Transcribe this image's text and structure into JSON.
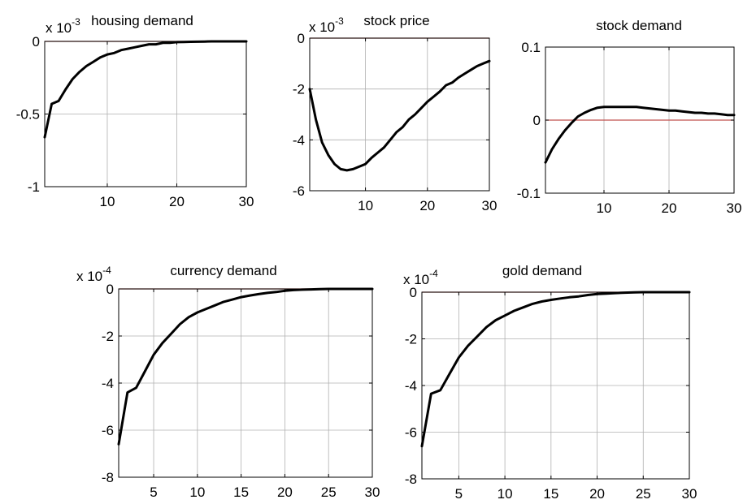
{
  "chart_data": [
    {
      "type": "line",
      "title": "housing demand",
      "exponent": {
        "base": "x 10",
        "power": "-3"
      },
      "xlim": [
        1,
        30
      ],
      "ylim": [
        -1,
        0
      ],
      "xticks": [
        10,
        20,
        30
      ],
      "xtick_labels": [
        "10",
        "20",
        "30"
      ],
      "yticks": [
        0,
        -0.5,
        -1
      ],
      "ytick_labels": [
        "0",
        "-0.5",
        "-1"
      ],
      "grid": true,
      "zero_line": true,
      "x": [
        1,
        2,
        3,
        4,
        5,
        6,
        7,
        8,
        9,
        10,
        11,
        12,
        13,
        14,
        15,
        16,
        17,
        18,
        19,
        20,
        21,
        22,
        23,
        24,
        25,
        26,
        27,
        28,
        29,
        30
      ],
      "series": [
        {
          "values": [
            -0.66,
            -0.43,
            -0.41,
            -0.33,
            -0.26,
            -0.21,
            -0.17,
            -0.14,
            -0.11,
            -0.09,
            -0.08,
            -0.06,
            -0.05,
            -0.04,
            -0.03,
            -0.02,
            -0.02,
            -0.01,
            -0.01,
            -0.005,
            -0.004,
            -0.003,
            -0.002,
            -0.001,
            0,
            0,
            0,
            0,
            0,
            0
          ]
        }
      ]
    },
    {
      "type": "line",
      "title": "stock price",
      "exponent": {
        "base": "x 10",
        "power": "-3"
      },
      "xlim": [
        1,
        30
      ],
      "ylim": [
        -6,
        0
      ],
      "xticks": [
        10,
        20,
        30
      ],
      "xtick_labels": [
        "10",
        "20",
        "30"
      ],
      "yticks": [
        0,
        -2,
        -4,
        -6
      ],
      "ytick_labels": [
        "0",
        "-2",
        "-4",
        "-6"
      ],
      "grid": true,
      "zero_line": true,
      "x": [
        1,
        2,
        3,
        4,
        5,
        6,
        7,
        8,
        9,
        10,
        11,
        12,
        13,
        14,
        15,
        16,
        17,
        18,
        19,
        20,
        21,
        22,
        23,
        24,
        25,
        26,
        27,
        28,
        29,
        30
      ],
      "series": [
        {
          "values": [
            -2.0,
            -3.2,
            -4.1,
            -4.6,
            -4.95,
            -5.15,
            -5.2,
            -5.15,
            -5.05,
            -4.95,
            -4.7,
            -4.5,
            -4.3,
            -4.0,
            -3.7,
            -3.5,
            -3.2,
            -3.0,
            -2.75,
            -2.5,
            -2.3,
            -2.1,
            -1.85,
            -1.75,
            -1.55,
            -1.4,
            -1.25,
            -1.1,
            -1.0,
            -0.9
          ]
        }
      ]
    },
    {
      "type": "line",
      "title": "stock demand",
      "exponent": null,
      "xlim": [
        1,
        30
      ],
      "ylim": [
        -0.1,
        0.1
      ],
      "xticks": [
        10,
        20,
        30
      ],
      "xtick_labels": [
        "10",
        "20",
        "30"
      ],
      "yticks": [
        0.1,
        0,
        -0.1
      ],
      "ytick_labels": [
        "0.1",
        "0",
        "-0.1"
      ],
      "grid": true,
      "zero_line": true,
      "x": [
        1,
        2,
        3,
        4,
        5,
        6,
        7,
        8,
        9,
        10,
        11,
        12,
        13,
        14,
        15,
        16,
        17,
        18,
        19,
        20,
        21,
        22,
        23,
        24,
        25,
        26,
        27,
        28,
        29,
        30
      ],
      "series": [
        {
          "values": [
            -0.058,
            -0.04,
            -0.026,
            -0.014,
            -0.004,
            0.005,
            0.01,
            0.014,
            0.017,
            0.018,
            0.018,
            0.018,
            0.018,
            0.018,
            0.018,
            0.017,
            0.016,
            0.015,
            0.014,
            0.013,
            0.013,
            0.012,
            0.011,
            0.01,
            0.01,
            0.009,
            0.009,
            0.008,
            0.007,
            0.007
          ]
        }
      ]
    },
    {
      "type": "line",
      "title": "currency demand",
      "exponent": {
        "base": "x 10",
        "power": "-4"
      },
      "xlim": [
        1,
        30
      ],
      "ylim": [
        -8,
        0
      ],
      "xticks": [
        5,
        10,
        15,
        20,
        25,
        30
      ],
      "xtick_labels": [
        "5",
        "10",
        "15",
        "20",
        "25",
        "30"
      ],
      "yticks": [
        0,
        -2,
        -4,
        -6,
        -8
      ],
      "ytick_labels": [
        "0",
        "-2",
        "-4",
        "-6",
        "-8"
      ],
      "grid": true,
      "zero_line": true,
      "x": [
        1,
        2,
        3,
        4,
        5,
        6,
        7,
        8,
        9,
        10,
        11,
        12,
        13,
        14,
        15,
        16,
        17,
        18,
        19,
        20,
        21,
        22,
        23,
        24,
        25,
        26,
        27,
        28,
        29,
        30
      ],
      "series": [
        {
          "values": [
            -6.6,
            -4.4,
            -4.2,
            -3.5,
            -2.8,
            -2.3,
            -1.9,
            -1.5,
            -1.2,
            -1.0,
            -0.85,
            -0.7,
            -0.55,
            -0.45,
            -0.35,
            -0.28,
            -0.22,
            -0.17,
            -0.13,
            -0.08,
            -0.05,
            -0.03,
            -0.02,
            -0.01,
            0,
            0,
            0,
            0,
            0,
            0
          ]
        }
      ]
    },
    {
      "type": "line",
      "title": "gold demand",
      "exponent": {
        "base": "x 10",
        "power": "-4"
      },
      "xlim": [
        1,
        30
      ],
      "ylim": [
        -8,
        0
      ],
      "xticks": [
        5,
        10,
        15,
        20,
        25,
        30
      ],
      "xtick_labels": [
        "5",
        "10",
        "15",
        "20",
        "25",
        "30"
      ],
      "yticks": [
        0,
        -2,
        -4,
        -6,
        -8
      ],
      "ytick_labels": [
        "0",
        "-2",
        "-4",
        "-6",
        "-8"
      ],
      "grid": true,
      "zero_line": true,
      "x": [
        1,
        2,
        3,
        4,
        5,
        6,
        7,
        8,
        9,
        10,
        11,
        12,
        13,
        14,
        15,
        16,
        17,
        18,
        19,
        20,
        21,
        22,
        23,
        24,
        25,
        26,
        27,
        28,
        29,
        30
      ],
      "series": [
        {
          "values": [
            -6.6,
            -4.35,
            -4.2,
            -3.5,
            -2.8,
            -2.3,
            -1.9,
            -1.5,
            -1.2,
            -1.0,
            -0.8,
            -0.65,
            -0.5,
            -0.4,
            -0.33,
            -0.27,
            -0.22,
            -0.18,
            -0.12,
            -0.08,
            -0.06,
            -0.04,
            -0.02,
            -0.01,
            0,
            0,
            0,
            0,
            0,
            0
          ]
        }
      ]
    }
  ],
  "colors": {
    "line": "#000000",
    "zero_line": "#c0504d",
    "grid": "#b0b0b0",
    "axes": "#000000"
  }
}
